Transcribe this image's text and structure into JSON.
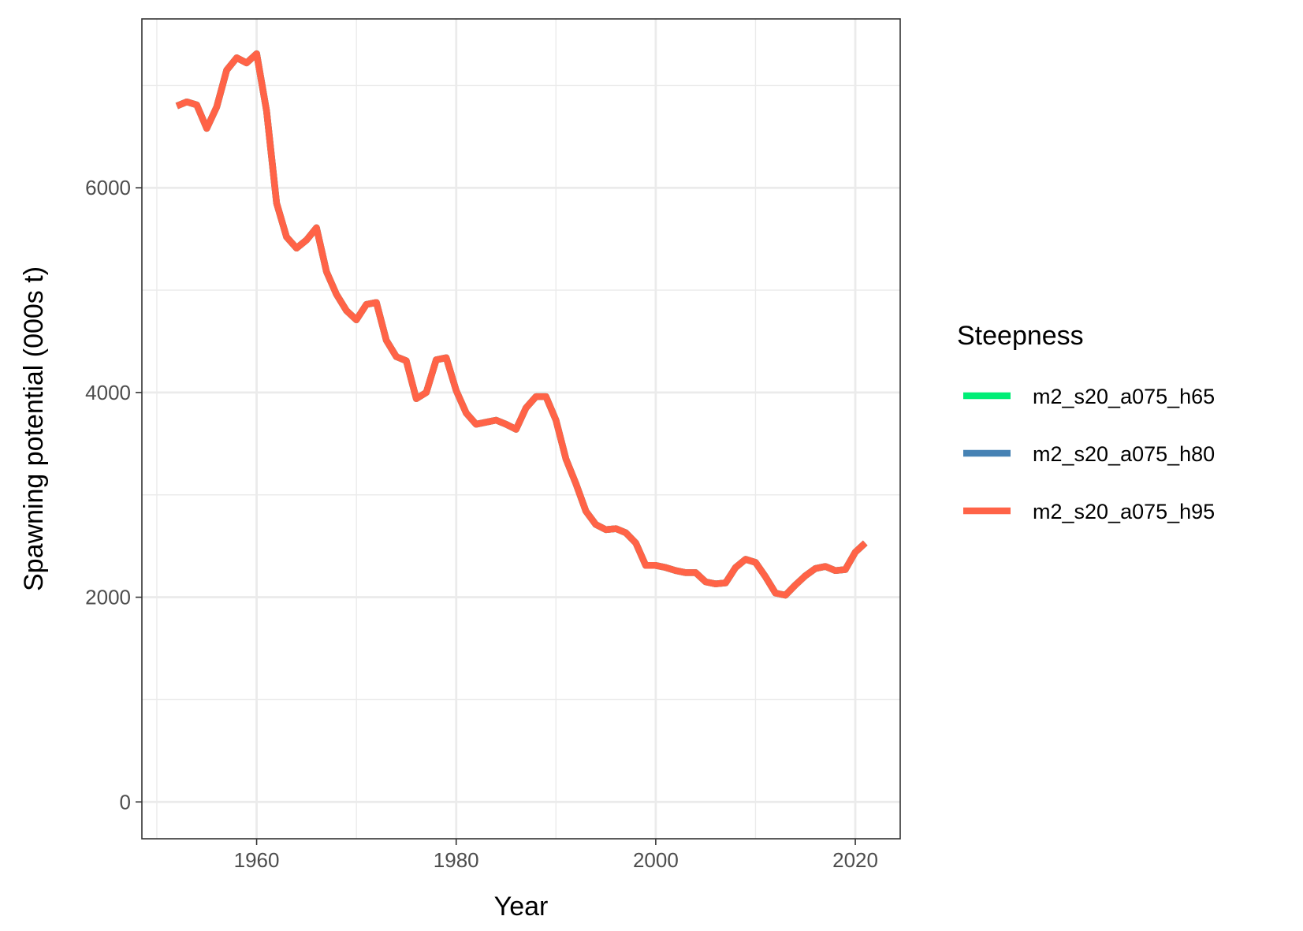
{
  "chart_data": {
    "type": "line",
    "xlabel": "Year",
    "ylabel": "Spawning potential (000s t)",
    "xlim": [
      1948.5,
      2024.5
    ],
    "ylim": [
      -360,
      7650
    ],
    "x_ticks": [
      1960,
      1980,
      2000,
      2020
    ],
    "x_minor": [
      1950,
      1970,
      1990,
      2010
    ],
    "y_ticks": [
      0,
      2000,
      4000,
      6000
    ],
    "y_minor": [
      1000,
      3000,
      5000,
      7000
    ],
    "x_tick_labels": [
      "1960",
      "1980",
      "2000",
      "2020"
    ],
    "y_tick_labels": [
      "0",
      "2000",
      "4000",
      "6000"
    ],
    "grid": true,
    "legend": {
      "title": "Steepness",
      "placement": "right",
      "items": [
        {
          "label": "m2_s20_a075_h65",
          "color": "#00EE76"
        },
        {
          "label": "m2_s20_a075_h80",
          "color": "#4682B4"
        },
        {
          "label": "m2_s20_a075_h95",
          "color": "#FF6347"
        }
      ]
    },
    "series": [
      {
        "name": "m2_s20_a075_h65",
        "color": "#00EE76",
        "x": [
          1952,
          1953,
          1954,
          1955,
          1956,
          1957,
          1958,
          1959,
          1960,
          1961,
          1962,
          1963,
          1964,
          1965,
          1966,
          1967,
          1968,
          1969,
          1970,
          1971,
          1972,
          1973,
          1974,
          1975,
          1976,
          1977,
          1978,
          1979,
          1980,
          1981,
          1982,
          1983,
          1984,
          1985,
          1986,
          1987,
          1988,
          1989,
          1990,
          1991,
          1992,
          1993,
          1994,
          1995,
          1996,
          1997,
          1998,
          1999,
          2000,
          2001,
          2002,
          2003,
          2004,
          2005,
          2006,
          2007,
          2008,
          2009,
          2010,
          2011,
          2012,
          2013,
          2014,
          2015,
          2016,
          2017,
          2018,
          2019,
          2020,
          2021
        ],
        "y": [
          6800,
          6840,
          6810,
          6580,
          6790,
          7150,
          7270,
          7220,
          7310,
          6750,
          5850,
          5520,
          5410,
          5490,
          5610,
          5180,
          4960,
          4800,
          4710,
          4860,
          4880,
          4510,
          4350,
          4310,
          3940,
          4000,
          4320,
          4340,
          4020,
          3800,
          3690,
          3710,
          3730,
          3690,
          3640,
          3850,
          3960,
          3960,
          3730,
          3350,
          3110,
          2840,
          2710,
          2660,
          2670,
          2630,
          2530,
          2310,
          2310,
          2290,
          2260,
          2240,
          2240,
          2150,
          2130,
          2140,
          2290,
          2370,
          2340,
          2200,
          2040,
          2020,
          2120,
          2210,
          2280,
          2300,
          2260,
          2270,
          2440,
          2530
        ]
      },
      {
        "name": "m2_s20_a075_h80",
        "color": "#4682B4",
        "x": [
          1952,
          1953,
          1954,
          1955,
          1956,
          1957,
          1958,
          1959,
          1960,
          1961,
          1962,
          1963,
          1964,
          1965,
          1966,
          1967,
          1968,
          1969,
          1970,
          1971,
          1972,
          1973,
          1974,
          1975,
          1976,
          1977,
          1978,
          1979,
          1980,
          1981,
          1982,
          1983,
          1984,
          1985,
          1986,
          1987,
          1988,
          1989,
          1990,
          1991,
          1992,
          1993,
          1994,
          1995,
          1996,
          1997,
          1998,
          1999,
          2000,
          2001,
          2002,
          2003,
          2004,
          2005,
          2006,
          2007,
          2008,
          2009,
          2010,
          2011,
          2012,
          2013,
          2014,
          2015,
          2016,
          2017,
          2018,
          2019,
          2020,
          2021
        ],
        "y": [
          6800,
          6840,
          6810,
          6580,
          6790,
          7150,
          7270,
          7220,
          7310,
          6750,
          5850,
          5520,
          5410,
          5490,
          5610,
          5180,
          4960,
          4800,
          4710,
          4860,
          4880,
          4510,
          4350,
          4310,
          3940,
          4000,
          4320,
          4340,
          4020,
          3800,
          3690,
          3710,
          3730,
          3690,
          3640,
          3850,
          3960,
          3960,
          3730,
          3350,
          3110,
          2840,
          2710,
          2660,
          2670,
          2630,
          2530,
          2310,
          2310,
          2290,
          2260,
          2240,
          2240,
          2150,
          2130,
          2140,
          2290,
          2370,
          2340,
          2200,
          2040,
          2020,
          2120,
          2210,
          2280,
          2300,
          2260,
          2270,
          2440,
          2530
        ]
      },
      {
        "name": "m2_s20_a075_h95",
        "color": "#FF6347",
        "x": [
          1952,
          1953,
          1954,
          1955,
          1956,
          1957,
          1958,
          1959,
          1960,
          1961,
          1962,
          1963,
          1964,
          1965,
          1966,
          1967,
          1968,
          1969,
          1970,
          1971,
          1972,
          1973,
          1974,
          1975,
          1976,
          1977,
          1978,
          1979,
          1980,
          1981,
          1982,
          1983,
          1984,
          1985,
          1986,
          1987,
          1988,
          1989,
          1990,
          1991,
          1992,
          1993,
          1994,
          1995,
          1996,
          1997,
          1998,
          1999,
          2000,
          2001,
          2002,
          2003,
          2004,
          2005,
          2006,
          2007,
          2008,
          2009,
          2010,
          2011,
          2012,
          2013,
          2014,
          2015,
          2016,
          2017,
          2018,
          2019,
          2020,
          2021
        ],
        "y": [
          6800,
          6840,
          6810,
          6580,
          6790,
          7150,
          7270,
          7220,
          7310,
          6750,
          5850,
          5520,
          5410,
          5490,
          5610,
          5180,
          4960,
          4800,
          4710,
          4860,
          4880,
          4510,
          4350,
          4310,
          3940,
          4000,
          4320,
          4340,
          4020,
          3800,
          3690,
          3710,
          3730,
          3690,
          3640,
          3850,
          3960,
          3960,
          3730,
          3350,
          3110,
          2840,
          2710,
          2660,
          2670,
          2630,
          2530,
          2310,
          2310,
          2290,
          2260,
          2240,
          2240,
          2150,
          2130,
          2140,
          2290,
          2370,
          2340,
          2200,
          2040,
          2020,
          2120,
          2210,
          2280,
          2300,
          2260,
          2270,
          2440,
          2530
        ]
      }
    ]
  }
}
